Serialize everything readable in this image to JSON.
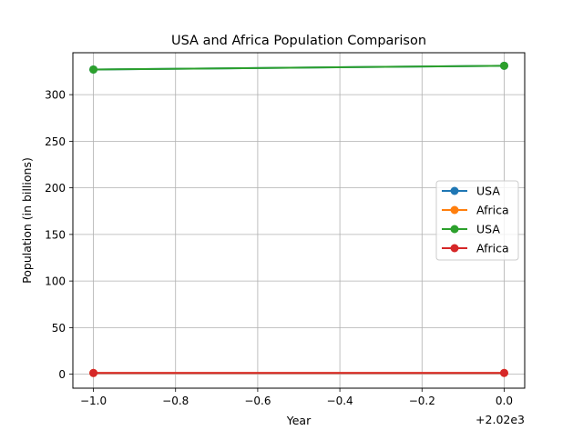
{
  "chart_data": {
    "type": "line",
    "title": "USA and Africa Population Comparison",
    "xlabel": "Year",
    "ylabel": "Population (in billions)",
    "x_offset_label": "+2.02e3",
    "xlim": [
      -1.05,
      0.05
    ],
    "ylim": [
      -15,
      345
    ],
    "x_ticks": [
      {
        "value": -1.0,
        "label": "−1.0"
      },
      {
        "value": -0.8,
        "label": "−0.8"
      },
      {
        "value": -0.6,
        "label": "−0.6"
      },
      {
        "value": -0.4,
        "label": "−0.4"
      },
      {
        "value": -0.2,
        "label": "−0.2"
      },
      {
        "value": 0.0,
        "label": "0.0"
      }
    ],
    "y_ticks": [
      {
        "value": 0,
        "label": "0"
      },
      {
        "value": 50,
        "label": "50"
      },
      {
        "value": 100,
        "label": "100"
      },
      {
        "value": 150,
        "label": "150"
      },
      {
        "value": 200,
        "label": "200"
      },
      {
        "value": 250,
        "label": "250"
      },
      {
        "value": 300,
        "label": "300"
      }
    ],
    "grid": true,
    "legend_position": "right",
    "series": [
      {
        "name": "USA",
        "color": "#1f77b4",
        "x": [
          -1,
          0
        ],
        "y": [
          327,
          331
        ]
      },
      {
        "name": "Africa",
        "color": "#ff7f0e",
        "x": [
          -1,
          0
        ],
        "y": [
          1.3,
          1.34
        ]
      },
      {
        "name": "USA",
        "color": "#2ca02c",
        "x": [
          -1,
          0
        ],
        "y": [
          327,
          331
        ]
      },
      {
        "name": "Africa",
        "color": "#d62728",
        "x": [
          -1,
          0
        ],
        "y": [
          1.3,
          1.34
        ]
      }
    ]
  }
}
